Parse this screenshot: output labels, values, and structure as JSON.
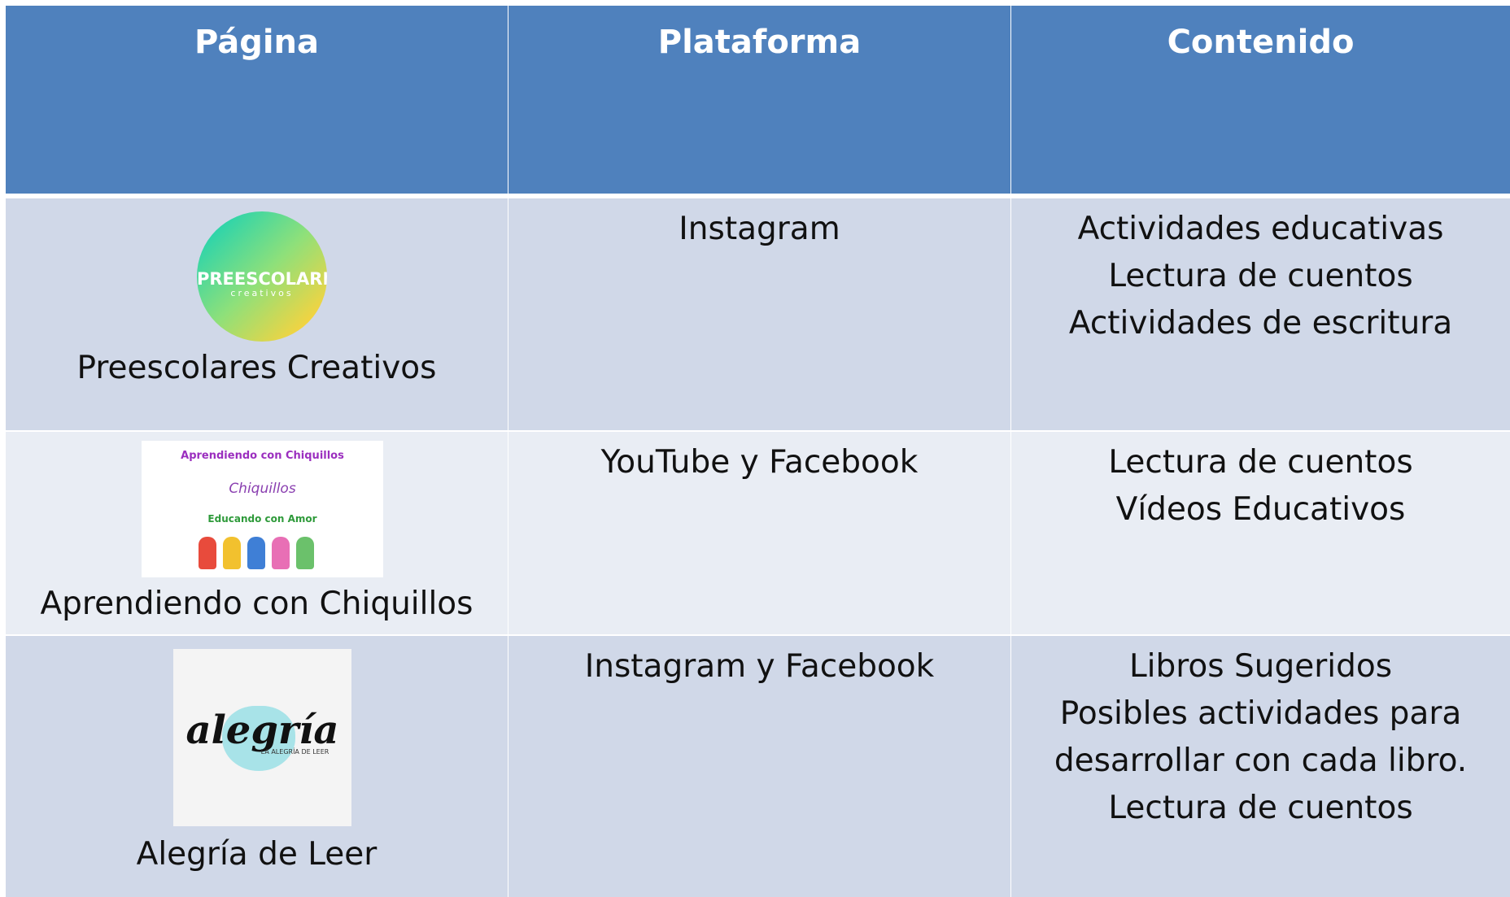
{
  "table": {
    "header": [
      "Página",
      "Plataforma",
      "Contenido"
    ],
    "rows": [
      {
        "name": "Preescolares Creativos",
        "logo_text": [
          "PREESCOLARES",
          "creativos"
        ],
        "platform": "Instagram",
        "content": [
          "Actividades educativas",
          "Lectura de cuentos",
          "Actividades de escritura"
        ]
      },
      {
        "name": "Aprendiendo con Chiquillos",
        "logo_text": [
          "Aprendiendo con Chiquillos",
          "Chiquillos",
          "Educando con Amor"
        ],
        "platform": "YouTube y Facebook",
        "content": [
          "Lectura de cuentos",
          "Vídeos Educativos"
        ]
      },
      {
        "name": "Alegría de Leer",
        "logo_text": [
          "alegría",
          "LA ALEGRÍA DE LEER"
        ],
        "platform": "Instagram y Facebook",
        "content": [
          "Libros Sugeridos",
          "Posibles actividades para",
          "desarrollar con cada libro.",
          "Lectura de cuentos"
        ]
      }
    ]
  }
}
